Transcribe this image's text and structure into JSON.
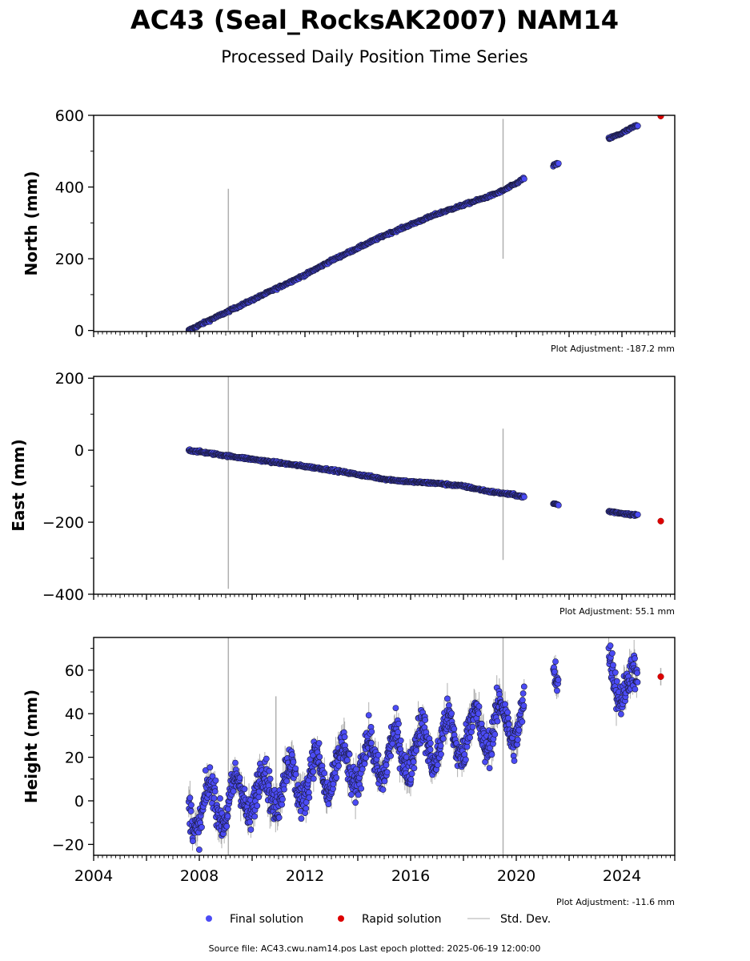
{
  "title": "AC43 (Seal_RocksAK2007) NAM14",
  "subtitle": "Processed Daily Position Time Series",
  "legend": {
    "final": "Final solution",
    "rapid": "Rapid solution",
    "std": "Std. Dev."
  },
  "source": "Source file: AC43.cwu.nam14.pos  Last epoch plotted: 2025-06-19 12:00:00",
  "colors": {
    "final": "#4b4bf5",
    "final_edge": "#1a1a3a",
    "rapid": "#dd0000",
    "std": "#b0b0b0"
  },
  "chart_data": [
    {
      "type": "scatter",
      "ylabel": "North (mm)",
      "adjustment": "Plot Adjustment: -187.2 mm",
      "xlim": [
        2004,
        2026
      ],
      "ylim": [
        -3,
        600
      ],
      "yticks": [
        0,
        200,
        400,
        600
      ],
      "ytick_labels": [
        "0",
        "200",
        "400",
        "600"
      ],
      "series": [
        {
          "name": "Final solution",
          "x": [
            2007.6,
            2008.0,
            2009.0,
            2010.0,
            2011.0,
            2012.0,
            2013.0,
            2014.0,
            2015.0,
            2016.0,
            2017.0,
            2018.0,
            2019.0,
            2019.5,
            2020.0,
            2020.3,
            2021.4,
            2021.6,
            2023.5,
            2024.0,
            2024.5
          ],
          "y": [
            0,
            15,
            50,
            85,
            120,
            155,
            195,
            230,
            265,
            295,
            325,
            350,
            375,
            390,
            410,
            425,
            460,
            465,
            535,
            550,
            570
          ]
        },
        {
          "name": "Rapid solution",
          "x": [
            2025.47
          ],
          "y": [
            598
          ]
        }
      ],
      "std_spikes": [
        {
          "x": 2009.1,
          "y_low": 0,
          "y_high": 395
        },
        {
          "x": 2019.5,
          "y_low": 200,
          "y_high": 590
        }
      ]
    },
    {
      "type": "scatter",
      "ylabel": "East (mm)",
      "adjustment": "Plot Adjustment: 55.1 mm",
      "xlim": [
        2004,
        2026
      ],
      "ylim": [
        -400,
        205
      ],
      "yticks": [
        -400,
        -200,
        0,
        200
      ],
      "ytick_labels": [
        "−400",
        "−200",
        "0",
        "200"
      ],
      "series": [
        {
          "name": "Final solution",
          "x": [
            2007.6,
            2009.0,
            2011.0,
            2013.0,
            2015.0,
            2016.0,
            2017.0,
            2018.0,
            2019.0,
            2020.0,
            2020.3,
            2021.4,
            2021.6,
            2023.5,
            2024.0,
            2024.5
          ],
          "y": [
            0,
            -15,
            -35,
            -55,
            -80,
            -88,
            -92,
            -100,
            -115,
            -125,
            -130,
            -148,
            -152,
            -170,
            -175,
            -180
          ]
        },
        {
          "name": "Rapid solution",
          "x": [
            2025.47
          ],
          "y": [
            -197
          ]
        }
      ],
      "std_spikes": [
        {
          "x": 2009.1,
          "y_low": -385,
          "y_high": 205
        },
        {
          "x": 2019.5,
          "y_low": -305,
          "y_high": 60
        }
      ]
    },
    {
      "type": "scatter",
      "ylabel": "Height (mm)",
      "adjustment": "Plot Adjustment: -11.6 mm",
      "xlim": [
        2004,
        2026
      ],
      "ylim": [
        -25,
        75
      ],
      "yticks": [
        -20,
        0,
        20,
        40,
        60
      ],
      "ytick_labels": [
        "−20",
        "0",
        "20",
        "40",
        "60"
      ],
      "xticks": [
        2004,
        2008,
        2012,
        2016,
        2020,
        2024
      ],
      "xtick_labels": [
        "2004",
        "2008",
        "2012",
        "2016",
        "2020",
        "2024"
      ],
      "series": [
        {
          "name": "Final solution",
          "trend": {
            "x0": 2007.6,
            "y0": -5,
            "x1": 2020.3,
            "y1": 38
          },
          "seasonal_amplitude_mm": 10,
          "segments": [
            [
              2007.6,
              2020.3
            ],
            [
              2021.4,
              2021.6
            ],
            [
              2023.5,
              2024.6
            ]
          ],
          "x": [
            2007.6,
            2008.5,
            2009.0,
            2010.0,
            2011.0,
            2012.0,
            2013.0,
            2014.0,
            2015.0,
            2016.0,
            2017.0,
            2018.0,
            2019.0,
            2020.0,
            2021.5,
            2023.7,
            2024.3
          ],
          "y": [
            -2,
            5,
            -12,
            10,
            12,
            8,
            20,
            22,
            15,
            30,
            25,
            35,
            38,
            42,
            50,
            60,
            50
          ]
        },
        {
          "name": "Rapid solution",
          "x": [
            2025.47
          ],
          "y": [
            57
          ]
        }
      ],
      "std_spikes": [
        {
          "x": 2009.1,
          "y_low": -25,
          "y_high": 75
        },
        {
          "x": 2019.5,
          "y_low": -25,
          "y_high": 75
        },
        {
          "x": 2010.9,
          "y_low": 5,
          "y_high": 48
        }
      ]
    }
  ]
}
